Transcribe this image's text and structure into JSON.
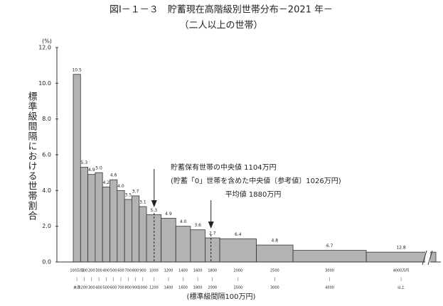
{
  "chart_data": {
    "type": "histogram",
    "title": "図Ⅰ－１－３　貯蓄現在高階級別世帯分布－2021 年－",
    "subtitle": "（二人以上の世帯）",
    "y_label": "標準級間隔における世帯割合",
    "y_unit": "(%)",
    "x_label": "(標準級間隔100万円)",
    "bins": [
      0,
      100,
      200,
      300,
      400,
      500,
      600,
      700,
      800,
      900,
      1000,
      1200,
      1400,
      1600,
      1800,
      2000,
      2500,
      3000,
      4000,
      4950
    ],
    "values": [
      10.5,
      5.3,
      4.9,
      5.0,
      4.2,
      4.6,
      4.0,
      3.5,
      3.7,
      3.1,
      2.65,
      2.45,
      2.0,
      1.8,
      1.35,
      1.3,
      0.95,
      0.65,
      0.55
    ],
    "share_labels": [
      "10.5",
      "5.3",
      "4.9",
      "5.0",
      "4.2",
      "4.6",
      "4.0",
      "3.5",
      "3.7",
      "3.1",
      "5.3",
      "4.9",
      "4.0",
      "3.6",
      "2.7",
      "6.4",
      "4.8",
      "6.7",
      "12.8"
    ],
    "categories": [
      [
        "100万円",
        "未満"
      ],
      [
        "100",
        "200"
      ],
      [
        "200",
        "300"
      ],
      [
        "300",
        "400"
      ],
      [
        "400",
        "500"
      ],
      [
        "500",
        "600"
      ],
      [
        "600",
        "700"
      ],
      [
        "700",
        "800"
      ],
      [
        "800",
        "900"
      ],
      [
        "900",
        "1000"
      ],
      [
        "1000",
        "1200"
      ],
      [
        "1200",
        "1400"
      ],
      [
        "1400",
        "1600"
      ],
      [
        "1600",
        "1800"
      ],
      [
        "1800",
        "2000"
      ],
      [
        "2000",
        "2500"
      ],
      [
        "2500",
        "3000"
      ],
      [
        "3000",
        "4000"
      ],
      [
        "4000万円",
        "以上"
      ]
    ],
    "color": "#b3b3b3",
    "xlim": [
      0,
      4950
    ],
    "ylim": [
      0,
      12
    ],
    "yticks": [
      {
        "value": 0,
        "label": "0.0"
      },
      {
        "value": 2,
        "label": "2.0"
      },
      {
        "value": 4,
        "label": "4.0"
      },
      {
        "value": 6,
        "label": "6.0"
      },
      {
        "value": 8,
        "label": "8.0"
      },
      {
        "value": 10,
        "label": "10.0"
      },
      {
        "value": 12,
        "label": "12.0"
      }
    ],
    "median": 1104,
    "median_label": "貯蓄保有世帯の中央値 1104万円",
    "median_note": "(貯蓄「0」世帯を含めた中央値〔参考値〕1026万円)",
    "mean": 1880,
    "mean_label": "平均値 1880万円"
  }
}
